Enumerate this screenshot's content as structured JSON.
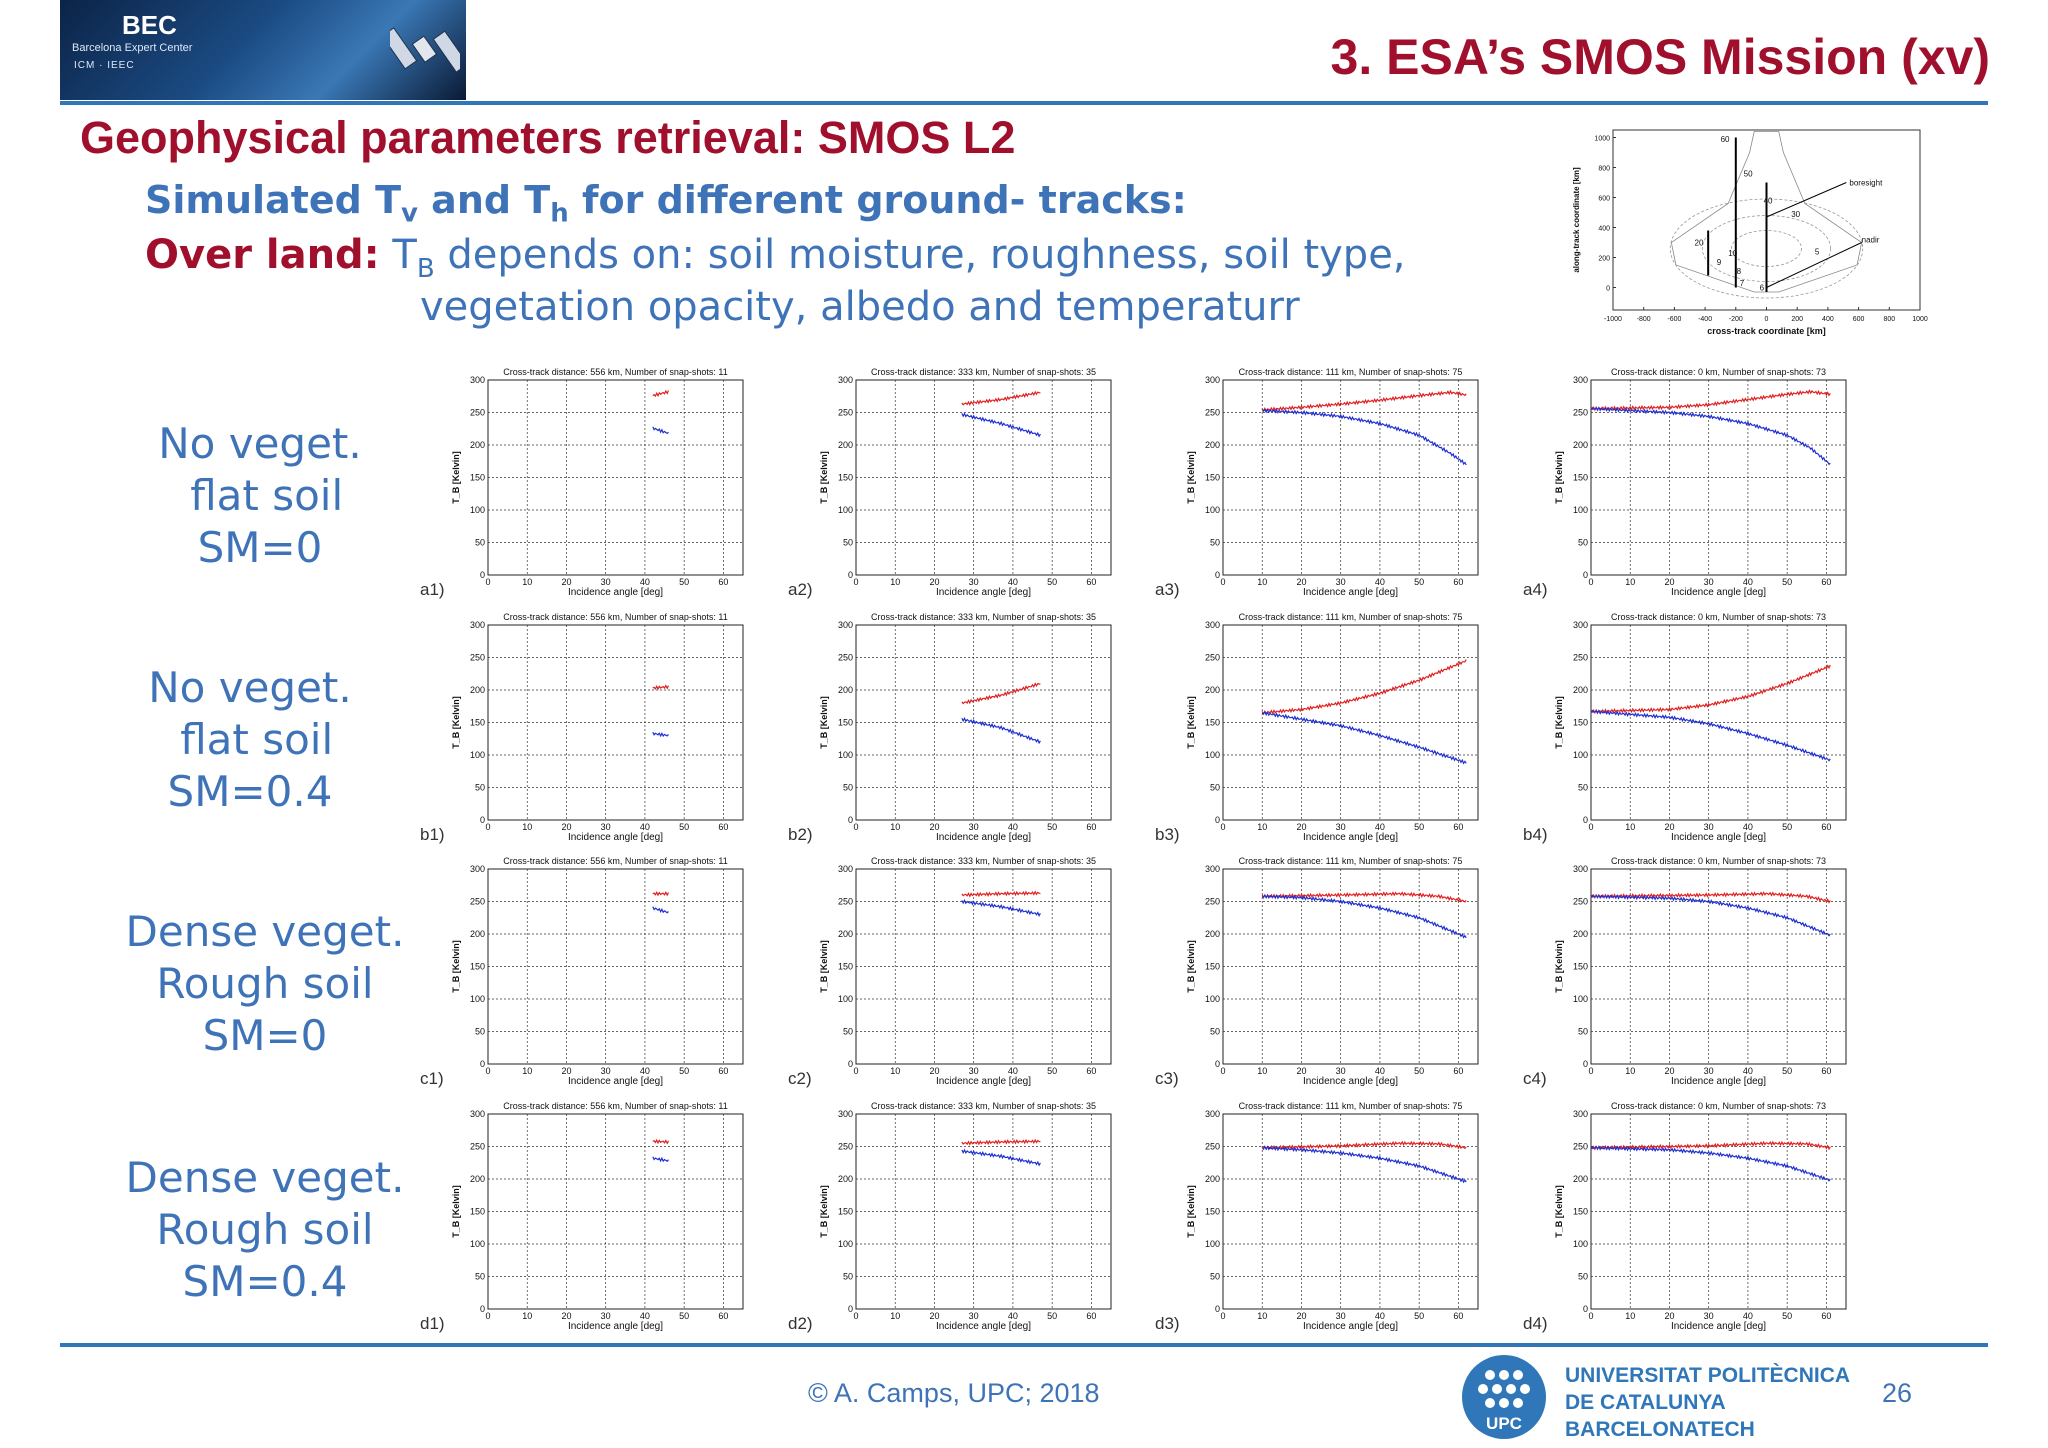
{
  "header": {
    "logo_text": "BEC",
    "logo_subtitle": "Barcelona Expert Center",
    "logo_orgs": "ICM  ·  IEEC",
    "title": "3. ESA’s SMOS Mission (xv)"
  },
  "slide": {
    "subtitle": "Geophysical parameters retrieval: SMOS L2",
    "line1_pre": "Simulated T",
    "line1_sub1": "v",
    "line1_mid": " and T",
    "line1_sub2": "h",
    "line1_post": " for different ground- tracks:",
    "line2_label": "Over land:",
    "line2_pre": " T",
    "line2_sub": "B",
    "line2_post": " depends on: soil moisture, roughness, soil type,",
    "line3": "vegetation opacity, albedo and temperaturr"
  },
  "row_labels": [
    "No veget.\n flat soil\nSM=0",
    "No veget.\n flat soil\nSM=0.4",
    "Dense veget.\nRough soil\nSM=0",
    "Dense veget.\nRough soil\nSM=0.4"
  ],
  "footer": {
    "copyright": "© A. Camps, UPC; 2018",
    "university": "UNIVERSITAT POLITÈCNICA\nDE CATALUNYA\nBARCELONATECH",
    "upc": "UPC",
    "page_number": "26"
  },
  "colors": {
    "title_red": "#a0102c",
    "text_blue": "#3f73b8",
    "rule_blue": "#2f77b8",
    "th_series": "#e02020",
    "tv_series": "#1f2fd0"
  },
  "chart_data": [
    {
      "type": "diagram",
      "xlabel": "cross-track coordinate [km]",
      "ylabel": "along-track coordinate [km]",
      "xticks": [
        -1000,
        -800,
        -600,
        -400,
        -200,
        0,
        200,
        400,
        600,
        800,
        1000
      ],
      "yticks": [
        0,
        200,
        400,
        600,
        800,
        1000
      ],
      "xlim": [
        -1000,
        1000
      ],
      "ylim": [
        -150,
        1050
      ],
      "annotations": [
        "boresight",
        "nadir"
      ],
      "contour_labels": [
        "60",
        "50",
        "40",
        "30",
        "20",
        "10",
        "9",
        "8",
        "7",
        "6",
        "5"
      ]
    },
    {
      "type": "line_grid",
      "xlim": [
        0,
        65
      ],
      "ylim": [
        0,
        300
      ],
      "xticks": [
        0,
        10,
        20,
        30,
        40,
        50,
        60
      ],
      "yticks": [
        0,
        50,
        100,
        150,
        200,
        250,
        300
      ],
      "xlabel": "Incidence angle [deg]",
      "ylabel": "T_B [Kelvin]",
      "columns": [
        {
          "title": "Cross-track distance: 556 km, Number of snap-shots: 11",
          "x_start": 42,
          "x_end": 46
        },
        {
          "title": "Cross-track distance: 333 km, Number of snap-shots: 35",
          "x_start": 27,
          "x_end": 47
        },
        {
          "title": "Cross-track distance: 111 km, Number of snap-shots: 75",
          "x_start": 10,
          "x_end": 62
        },
        {
          "title": "Cross-track distance: 0 km, Number of snap-shots: 73",
          "x_start": 0,
          "x_end": 61
        }
      ],
      "panels": [
        {
          "label": "a1)",
          "row": 0,
          "col": 0,
          "series": [
            {
              "color": "#e02020",
              "points": [
                [
                  42,
                  276
                ],
                [
                  46,
                  282
                ]
              ]
            },
            {
              "color": "#1f2fd0",
              "points": [
                [
                  42,
                  226
                ],
                [
                  46,
                  218
                ]
              ]
            }
          ]
        },
        {
          "label": "a2)",
          "row": 0,
          "col": 1,
          "series": [
            {
              "color": "#e02020",
              "points": [
                [
                  27,
                  263
                ],
                [
                  37,
                  270
                ],
                [
                  47,
                  281
                ]
              ]
            },
            {
              "color": "#1f2fd0",
              "points": [
                [
                  27,
                  247
                ],
                [
                  37,
                  233
                ],
                [
                  47,
                  215
                ]
              ]
            }
          ]
        },
        {
          "label": "a3)",
          "row": 0,
          "col": 2,
          "series": [
            {
              "color": "#e02020",
              "points": [
                [
                  10,
                  254
                ],
                [
                  20,
                  258
                ],
                [
                  30,
                  263
                ],
                [
                  40,
                  269
                ],
                [
                  50,
                  276
                ],
                [
                  58,
                  281
                ],
                [
                  62,
                  277
                ]
              ]
            },
            {
              "color": "#1f2fd0",
              "points": [
                [
                  10,
                  253
                ],
                [
                  20,
                  250
                ],
                [
                  30,
                  244
                ],
                [
                  40,
                  233
                ],
                [
                  50,
                  215
                ],
                [
                  58,
                  187
                ],
                [
                  62,
                  170
                ]
              ]
            }
          ]
        },
        {
          "label": "a4)",
          "row": 0,
          "col": 3,
          "series": [
            {
              "color": "#e02020",
              "points": [
                [
                  0,
                  256
                ],
                [
                  20,
                  258
                ],
                [
                  30,
                  262
                ],
                [
                  40,
                  270
                ],
                [
                  50,
                  278
                ],
                [
                  56,
                  282
                ],
                [
                  61,
                  278
                ]
              ]
            },
            {
              "color": "#1f2fd0",
              "points": [
                [
                  0,
                  256
                ],
                [
                  20,
                  250
                ],
                [
                  30,
                  244
                ],
                [
                  40,
                  233
                ],
                [
                  50,
                  215
                ],
                [
                  56,
                  195
                ],
                [
                  61,
                  170
                ]
              ]
            }
          ]
        },
        {
          "label": "b1)",
          "row": 1,
          "col": 0,
          "series": [
            {
              "color": "#e02020",
              "points": [
                [
                  42,
                  203
                ],
                [
                  46,
                  205
                ]
              ]
            },
            {
              "color": "#1f2fd0",
              "points": [
                [
                  42,
                  133
                ],
                [
                  46,
                  130
                ]
              ]
            }
          ]
        },
        {
          "label": "b2)",
          "row": 1,
          "col": 1,
          "series": [
            {
              "color": "#e02020",
              "points": [
                [
                  27,
                  180
                ],
                [
                  37,
                  192
                ],
                [
                  47,
                  210
                ]
              ]
            },
            {
              "color": "#1f2fd0",
              "points": [
                [
                  27,
                  155
                ],
                [
                  37,
                  142
                ],
                [
                  47,
                  120
                ]
              ]
            }
          ]
        },
        {
          "label": "b3)",
          "row": 1,
          "col": 2,
          "series": [
            {
              "color": "#e02020",
              "points": [
                [
                  10,
                  165
                ],
                [
                  20,
                  170
                ],
                [
                  30,
                  180
                ],
                [
                  40,
                  195
                ],
                [
                  50,
                  215
                ],
                [
                  62,
                  245
                ]
              ]
            },
            {
              "color": "#1f2fd0",
              "points": [
                [
                  10,
                  165
                ],
                [
                  20,
                  155
                ],
                [
                  30,
                  145
                ],
                [
                  40,
                  130
                ],
                [
                  50,
                  112
                ],
                [
                  62,
                  88
                ]
              ]
            }
          ]
        },
        {
          "label": "b4)",
          "row": 1,
          "col": 3,
          "series": [
            {
              "color": "#e02020",
              "points": [
                [
                  0,
                  167
                ],
                [
                  20,
                  170
                ],
                [
                  30,
                  177
                ],
                [
                  40,
                  190
                ],
                [
                  50,
                  210
                ],
                [
                  61,
                  237
                ]
              ]
            },
            {
              "color": "#1f2fd0",
              "points": [
                [
                  0,
                  167
                ],
                [
                  20,
                  158
                ],
                [
                  30,
                  148
                ],
                [
                  40,
                  133
                ],
                [
                  50,
                  115
                ],
                [
                  61,
                  92
                ]
              ]
            }
          ]
        },
        {
          "label": "c1)",
          "row": 2,
          "col": 0,
          "series": [
            {
              "color": "#e02020",
              "points": [
                [
                  42,
                  262
                ],
                [
                  46,
                  262
                ]
              ]
            },
            {
              "color": "#1f2fd0",
              "points": [
                [
                  42,
                  240
                ],
                [
                  46,
                  233
                ]
              ]
            }
          ]
        },
        {
          "label": "c2)",
          "row": 2,
          "col": 1,
          "series": [
            {
              "color": "#e02020",
              "points": [
                [
                  27,
                  260
                ],
                [
                  37,
                  262
                ],
                [
                  47,
                  263
                ]
              ]
            },
            {
              "color": "#1f2fd0",
              "points": [
                [
                  27,
                  250
                ],
                [
                  37,
                  242
                ],
                [
                  47,
                  230
                ]
              ]
            }
          ]
        },
        {
          "label": "c3)",
          "row": 2,
          "col": 2,
          "series": [
            {
              "color": "#e02020",
              "points": [
                [
                  10,
                  258
                ],
                [
                  30,
                  260
                ],
                [
                  45,
                  262
                ],
                [
                  55,
                  258
                ],
                [
                  62,
                  250
                ]
              ]
            },
            {
              "color": "#1f2fd0",
              "points": [
                [
                  10,
                  258
                ],
                [
                  20,
                  256
                ],
                [
                  30,
                  250
                ],
                [
                  40,
                  240
                ],
                [
                  50,
                  225
                ],
                [
                  62,
                  195
                ]
              ]
            }
          ]
        },
        {
          "label": "c4)",
          "row": 2,
          "col": 3,
          "series": [
            {
              "color": "#e02020",
              "points": [
                [
                  0,
                  258
                ],
                [
                  30,
                  260
                ],
                [
                  45,
                  262
                ],
                [
                  55,
                  258
                ],
                [
                  61,
                  250
                ]
              ]
            },
            {
              "color": "#1f2fd0",
              "points": [
                [
                  0,
                  258
                ],
                [
                  20,
                  255
                ],
                [
                  30,
                  250
                ],
                [
                  40,
                  240
                ],
                [
                  50,
                  225
                ],
                [
                  61,
                  198
                ]
              ]
            }
          ]
        },
        {
          "label": "d1)",
          "row": 3,
          "col": 0,
          "series": [
            {
              "color": "#e02020",
              "points": [
                [
                  42,
                  258
                ],
                [
                  46,
                  257
                ]
              ]
            },
            {
              "color": "#1f2fd0",
              "points": [
                [
                  42,
                  232
                ],
                [
                  46,
                  228
                ]
              ]
            }
          ]
        },
        {
          "label": "d2)",
          "row": 3,
          "col": 1,
          "series": [
            {
              "color": "#e02020",
              "points": [
                [
                  27,
                  255
                ],
                [
                  37,
                  257
                ],
                [
                  47,
                  258
                ]
              ]
            },
            {
              "color": "#1f2fd0",
              "points": [
                [
                  27,
                  243
                ],
                [
                  37,
                  235
                ],
                [
                  47,
                  223
                ]
              ]
            }
          ]
        },
        {
          "label": "d3)",
          "row": 3,
          "col": 2,
          "series": [
            {
              "color": "#e02020",
              "points": [
                [
                  10,
                  248
                ],
                [
                  30,
                  251
                ],
                [
                  45,
                  255
                ],
                [
                  55,
                  254
                ],
                [
                  62,
                  248
                ]
              ]
            },
            {
              "color": "#1f2fd0",
              "points": [
                [
                  10,
                  248
                ],
                [
                  20,
                  245
                ],
                [
                  30,
                  240
                ],
                [
                  40,
                  232
                ],
                [
                  50,
                  220
                ],
                [
                  62,
                  196
                ]
              ]
            }
          ]
        },
        {
          "label": "d4)",
          "row": 3,
          "col": 3,
          "series": [
            {
              "color": "#e02020",
              "points": [
                [
                  0,
                  248
                ],
                [
                  30,
                  251
                ],
                [
                  45,
                  255
                ],
                [
                  55,
                  254
                ],
                [
                  61,
                  248
                ]
              ]
            },
            {
              "color": "#1f2fd0",
              "points": [
                [
                  0,
                  248
                ],
                [
                  20,
                  245
                ],
                [
                  30,
                  240
                ],
                [
                  40,
                  232
                ],
                [
                  50,
                  220
                ],
                [
                  61,
                  198
                ]
              ]
            }
          ]
        }
      ]
    }
  ]
}
